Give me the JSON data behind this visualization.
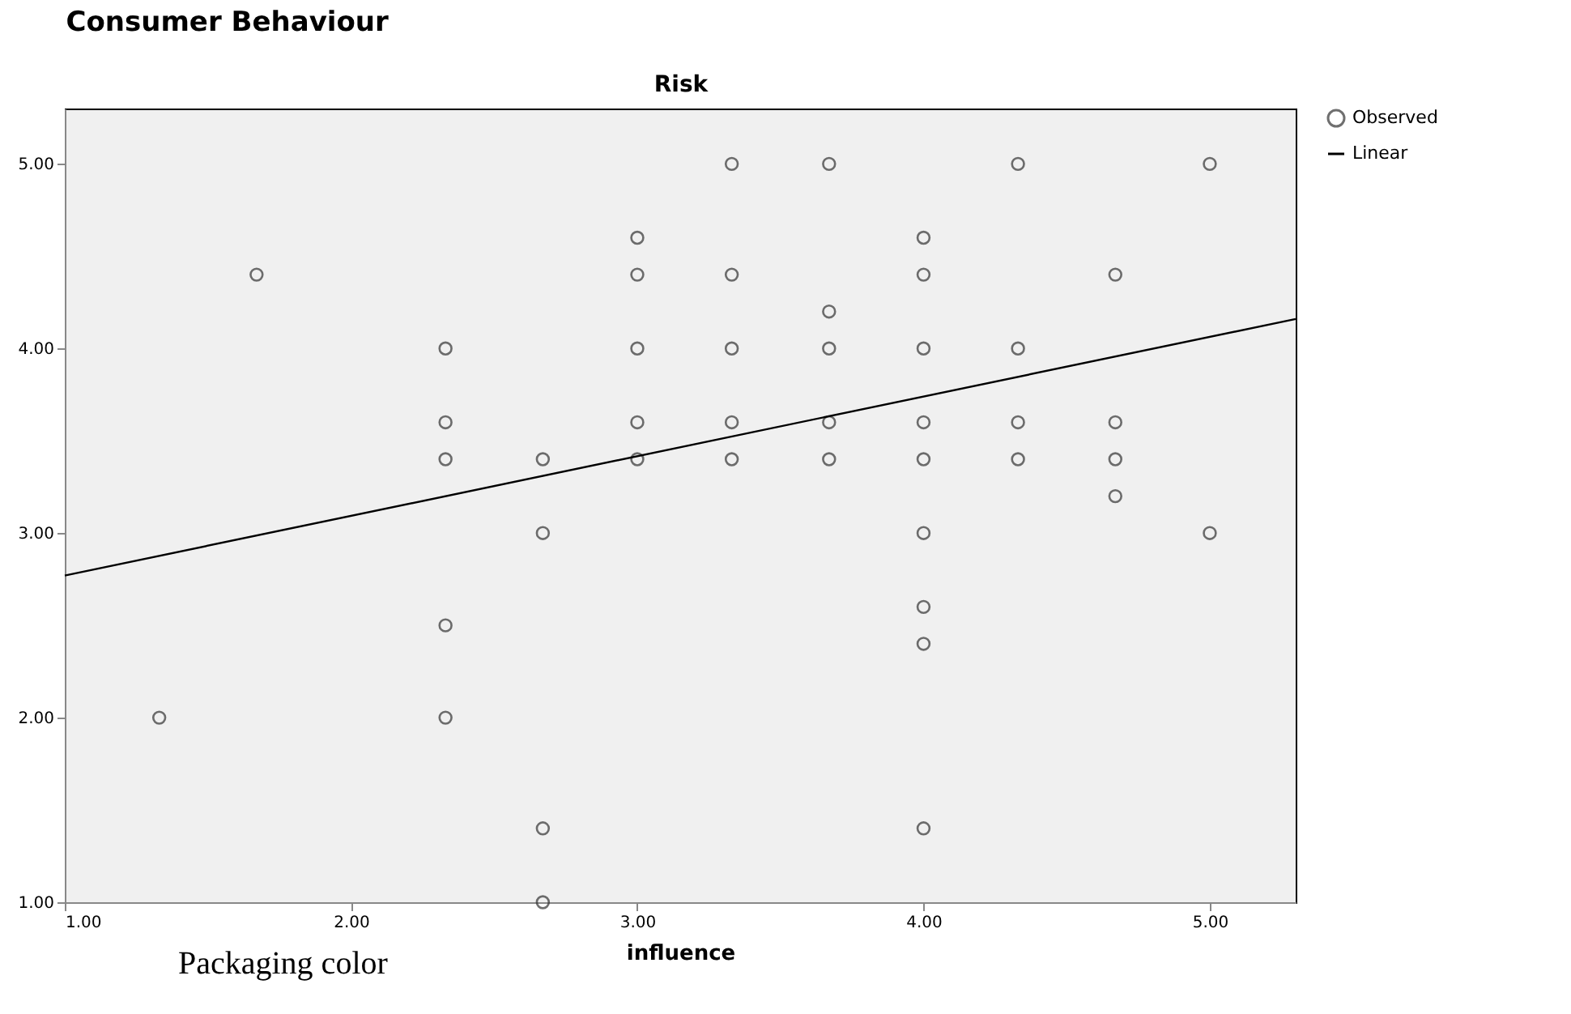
{
  "chart_data": {
    "type": "scatter",
    "title": "Consumer Behaviour",
    "xlabel": "influence",
    "ylabel": "Risk",
    "annotations": [
      "Packaging color"
    ],
    "xlim": [
      1,
      5.3
    ],
    "ylim": [
      1,
      5.3
    ],
    "xticks": [
      {
        "value": 1,
        "label": "1.00"
      },
      {
        "value": 2,
        "label": "2.00"
      },
      {
        "value": 3,
        "label": "3.00"
      },
      {
        "value": 4,
        "label": "4.00"
      },
      {
        "value": 5,
        "label": "5.00"
      }
    ],
    "yticks": [
      {
        "value": 1,
        "label": "1.00"
      },
      {
        "value": 2,
        "label": "2.00"
      },
      {
        "value": 3,
        "label": "3.00"
      },
      {
        "value": 4,
        "label": "4.00"
      },
      {
        "value": 5,
        "label": "5.00"
      }
    ],
    "grid": false,
    "legend": "top right",
    "series": [
      {
        "name": "Observed",
        "type": "scatter",
        "color": "#333333",
        "marker": "circle",
        "x": [
          1.33,
          1.67,
          2.33,
          2.33,
          2.33,
          2.33,
          2.33,
          2.67,
          2.67,
          2.67,
          2.67,
          3.0,
          3.0,
          3.0,
          3.0,
          3.0,
          3.33,
          3.33,
          3.33,
          3.33,
          3.33,
          3.67,
          3.67,
          3.67,
          3.67,
          3.67,
          4.0,
          4.0,
          4.0,
          4.0,
          4.0,
          4.0,
          4.0,
          4.0,
          4.0,
          4.33,
          4.33,
          4.33,
          4.33,
          4.67,
          4.67,
          4.67,
          4.67,
          5.0,
          5.0
        ],
        "values": [
          2.0,
          4.4,
          4.0,
          3.6,
          3.4,
          2.5,
          2.0,
          3.4,
          3.0,
          1.4,
          1.0,
          4.6,
          4.4,
          4.0,
          3.6,
          3.4,
          5.0,
          4.4,
          4.0,
          3.6,
          3.4,
          5.0,
          4.2,
          4.0,
          3.6,
          3.4,
          4.6,
          4.4,
          4.0,
          3.6,
          3.4,
          3.0,
          2.6,
          2.4,
          1.4,
          5.0,
          4.0,
          3.6,
          3.4,
          4.4,
          3.6,
          3.4,
          3.2,
          5.0,
          3.0
        ]
      },
      {
        "name": "Linear",
        "type": "line",
        "color": "#000000",
        "marker": "none",
        "line_style": "solid",
        "x": [
          1.0,
          5.3
        ],
        "values": [
          2.77,
          4.16
        ]
      }
    ]
  }
}
